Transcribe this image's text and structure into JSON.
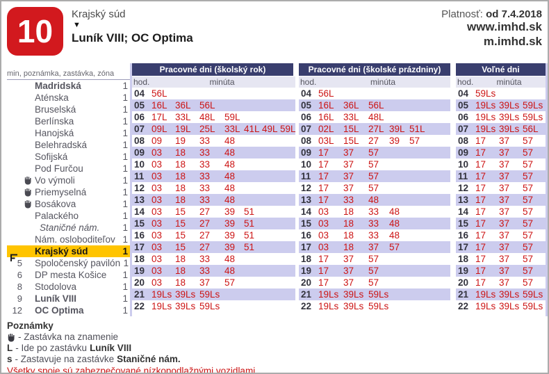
{
  "header": {
    "line_number": "10",
    "origin_stop": "Krajský súd",
    "direction_arrow": "▼",
    "destination": "Luník VIII; OC Optima",
    "validity_label": "Platnosť:",
    "validity_value": "od 7.4.2018",
    "website": "www.imhd.sk",
    "mobile_site": "m.imhd.sk"
  },
  "icons": {
    "request_stop": "hand-icon",
    "current_stop": "marker-icon",
    "direction": "down-triangle-icon"
  },
  "colors": {
    "badge_red": "#d2191e",
    "header_navy": "#393e6e",
    "row_lavender": "#ccccee",
    "subheader_lavender": "#e6e6f2",
    "highlight_amber": "#ffc400",
    "time_red": "#cc1414"
  },
  "route": {
    "columns_label": "min, poznámka, zastávka, zóna",
    "stops": [
      {
        "min": "",
        "note": "",
        "name": "Madridská",
        "zone": "1",
        "bold": true
      },
      {
        "min": "",
        "note": "",
        "name": "Aténska",
        "zone": "1"
      },
      {
        "min": "",
        "note": "",
        "name": "Bruselská",
        "zone": "1"
      },
      {
        "min": "",
        "note": "",
        "name": "Berlínska",
        "zone": "1"
      },
      {
        "min": "",
        "note": "",
        "name": "Hanojská",
        "zone": "1"
      },
      {
        "min": "",
        "note": "",
        "name": "Belehradská",
        "zone": "1"
      },
      {
        "min": "",
        "note": "",
        "name": "Sofijská",
        "zone": "1"
      },
      {
        "min": "",
        "note": "",
        "name": "Pod Furčou",
        "zone": "1"
      },
      {
        "min": "",
        "note": "hand",
        "name": "Vo výmoli",
        "zone": "1"
      },
      {
        "min": "",
        "note": "hand",
        "name": "Priemyselná",
        "zone": "1"
      },
      {
        "min": "",
        "note": "hand",
        "name": "Bosákova",
        "zone": "1"
      },
      {
        "min": "",
        "note": "",
        "name": "Palackého",
        "zone": "1"
      },
      {
        "min": "",
        "note": "",
        "name": "Staničné nám.",
        "zone": "1",
        "italic": true
      },
      {
        "min": "",
        "note": "",
        "name": "Nám. osloboditeľov",
        "zone": "1"
      },
      {
        "min": "",
        "note": "marker",
        "name": "Krajský súd",
        "zone": "1",
        "bold": true,
        "highlight": true
      },
      {
        "min": "5",
        "note": "",
        "name": "Spoločenský pavilón",
        "zone": "1"
      },
      {
        "min": "6",
        "note": "",
        "name": "DP mesta Košice",
        "zone": "1"
      },
      {
        "min": "8",
        "note": "",
        "name": "Stodolova",
        "zone": "1"
      },
      {
        "min": "9",
        "note": "",
        "name": "Luník VIII",
        "zone": "1",
        "bold": true
      },
      {
        "min": "12",
        "note": "",
        "name": "OC Optima",
        "zone": "1",
        "bold": true
      }
    ]
  },
  "timetables": [
    {
      "title": "Pracovné dni (školský rok)",
      "hod_label": "hod.",
      "minute_label": "minúta",
      "rows": [
        {
          "hour": "04",
          "minutes": [
            "56L"
          ]
        },
        {
          "hour": "05",
          "minutes": [
            "16L",
            "36L",
            "56L"
          ]
        },
        {
          "hour": "06",
          "minutes": [
            "17L",
            "33L",
            "48L",
            "59L"
          ]
        },
        {
          "hour": "07",
          "minutes": [
            "09L",
            "19L",
            "25L",
            "33L",
            "41L",
            "49L",
            "59L"
          ]
        },
        {
          "hour": "08",
          "minutes": [
            "09",
            "19",
            "33",
            "48"
          ]
        },
        {
          "hour": "09",
          "minutes": [
            "03",
            "18",
            "33",
            "48"
          ]
        },
        {
          "hour": "10",
          "minutes": [
            "03",
            "18",
            "33",
            "48"
          ]
        },
        {
          "hour": "11",
          "minutes": [
            "03",
            "18",
            "33",
            "48"
          ]
        },
        {
          "hour": "12",
          "minutes": [
            "03",
            "18",
            "33",
            "48"
          ]
        },
        {
          "hour": "13",
          "minutes": [
            "03",
            "18",
            "33",
            "48"
          ]
        },
        {
          "hour": "14",
          "minutes": [
            "03",
            "15",
            "27",
            "39",
            "51"
          ]
        },
        {
          "hour": "15",
          "minutes": [
            "03",
            "15",
            "27",
            "39",
            "51"
          ]
        },
        {
          "hour": "16",
          "minutes": [
            "03",
            "15",
            "27",
            "39",
            "51"
          ]
        },
        {
          "hour": "17",
          "minutes": [
            "03",
            "15",
            "27",
            "39",
            "51"
          ]
        },
        {
          "hour": "18",
          "minutes": [
            "03",
            "18",
            "33",
            "48"
          ]
        },
        {
          "hour": "19",
          "minutes": [
            "03",
            "18",
            "33",
            "48"
          ]
        },
        {
          "hour": "20",
          "minutes": [
            "03",
            "18",
            "37",
            "57"
          ]
        },
        {
          "hour": "21",
          "minutes": [
            "19Ls",
            "39Ls",
            "59Ls"
          ]
        },
        {
          "hour": "22",
          "minutes": [
            "19Ls",
            "39Ls",
            "59Ls"
          ]
        }
      ]
    },
    {
      "title": "Pracovné dni (školské prázdniny)",
      "hod_label": "hod.",
      "minute_label": "minúta",
      "rows": [
        {
          "hour": "04",
          "minutes": [
            "56L"
          ]
        },
        {
          "hour": "05",
          "minutes": [
            "16L",
            "36L",
            "56L"
          ]
        },
        {
          "hour": "06",
          "minutes": [
            "16L",
            "33L",
            "48L"
          ]
        },
        {
          "hour": "07",
          "minutes": [
            "02L",
            "15L",
            "27L",
            "39L",
            "51L"
          ]
        },
        {
          "hour": "08",
          "minutes": [
            "03L",
            "15L",
            "27",
            "39",
            "57"
          ]
        },
        {
          "hour": "09",
          "minutes": [
            "17",
            "37",
            "57"
          ]
        },
        {
          "hour": "10",
          "minutes": [
            "17",
            "37",
            "57"
          ]
        },
        {
          "hour": "11",
          "minutes": [
            "17",
            "37",
            "57"
          ]
        },
        {
          "hour": "12",
          "minutes": [
            "17",
            "37",
            "57"
          ]
        },
        {
          "hour": "13",
          "minutes": [
            "17",
            "33",
            "48"
          ]
        },
        {
          "hour": "14",
          "minutes": [
            "03",
            "18",
            "33",
            "48"
          ]
        },
        {
          "hour": "15",
          "minutes": [
            "03",
            "18",
            "33",
            "48"
          ]
        },
        {
          "hour": "16",
          "minutes": [
            "03",
            "18",
            "33",
            "48"
          ]
        },
        {
          "hour": "17",
          "minutes": [
            "03",
            "18",
            "37",
            "57"
          ]
        },
        {
          "hour": "18",
          "minutes": [
            "17",
            "37",
            "57"
          ]
        },
        {
          "hour": "19",
          "minutes": [
            "17",
            "37",
            "57"
          ]
        },
        {
          "hour": "20",
          "minutes": [
            "17",
            "37",
            "57"
          ]
        },
        {
          "hour": "21",
          "minutes": [
            "19Ls",
            "39Ls",
            "59Ls"
          ]
        },
        {
          "hour": "22",
          "minutes": [
            "19Ls",
            "39Ls",
            "59Ls"
          ]
        }
      ]
    },
    {
      "title": "Voľné dni",
      "hod_label": "hod.",
      "minute_label": "minúta",
      "rows": [
        {
          "hour": "04",
          "minutes": [
            "59Ls"
          ]
        },
        {
          "hour": "05",
          "minutes": [
            "19Ls",
            "39Ls",
            "59Ls"
          ]
        },
        {
          "hour": "06",
          "minutes": [
            "19Ls",
            "39Ls",
            "59Ls"
          ]
        },
        {
          "hour": "07",
          "minutes": [
            "19Ls",
            "39Ls",
            "56L"
          ]
        },
        {
          "hour": "08",
          "minutes": [
            "17",
            "37",
            "57"
          ]
        },
        {
          "hour": "09",
          "minutes": [
            "17",
            "37",
            "57"
          ]
        },
        {
          "hour": "10",
          "minutes": [
            "17",
            "37",
            "57"
          ]
        },
        {
          "hour": "11",
          "minutes": [
            "17",
            "37",
            "57"
          ]
        },
        {
          "hour": "12",
          "minutes": [
            "17",
            "37",
            "57"
          ]
        },
        {
          "hour": "13",
          "minutes": [
            "17",
            "37",
            "57"
          ]
        },
        {
          "hour": "14",
          "minutes": [
            "17",
            "37",
            "57"
          ]
        },
        {
          "hour": "15",
          "minutes": [
            "17",
            "37",
            "57"
          ]
        },
        {
          "hour": "16",
          "minutes": [
            "17",
            "37",
            "57"
          ]
        },
        {
          "hour": "17",
          "minutes": [
            "17",
            "37",
            "57"
          ]
        },
        {
          "hour": "18",
          "minutes": [
            "17",
            "37",
            "57"
          ]
        },
        {
          "hour": "19",
          "minutes": [
            "17",
            "37",
            "57"
          ]
        },
        {
          "hour": "20",
          "minutes": [
            "17",
            "37",
            "57"
          ]
        },
        {
          "hour": "21",
          "minutes": [
            "19Ls",
            "39Ls",
            "59Ls"
          ]
        },
        {
          "hour": "22",
          "minutes": [
            "19Ls",
            "39Ls",
            "59Ls"
          ]
        }
      ]
    }
  ],
  "notes": {
    "title": "Poznámky",
    "hand_text": "- Zastávka na znamenie",
    "L_symbol": "L",
    "L_text": "- Ide po zastávku",
    "L_bold": "Luník VIII",
    "s_symbol": "s",
    "s_text": "- Zastavuje na zastávke",
    "s_bold": "Staničné nám.",
    "footer": "Všetky spoje sú zabezpečované nízkopodlažnými vozidlami"
  }
}
